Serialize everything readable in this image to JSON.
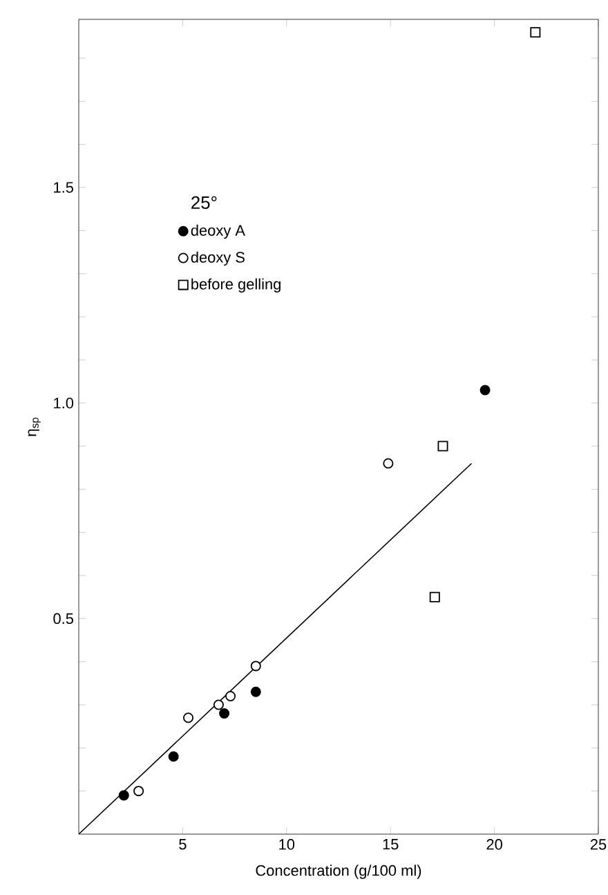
{
  "chart_data": {
    "type": "scatter",
    "xlabel": "Concentration (g/100 ml)",
    "ylabel": "η$_{sp}$",
    "legend_title": "25°",
    "xlim": [
      0,
      25
    ],
    "ylim": [
      0,
      1.89
    ],
    "xticks": [
      5,
      10,
      15,
      20,
      25
    ],
    "yticks": [
      {
        "value": 0.1,
        "label": null
      },
      {
        "value": 0.2,
        "label": null
      },
      {
        "value": 0.3,
        "label": null
      },
      {
        "value": 0.4,
        "label": null
      },
      {
        "value": 0.5,
        "label": "0.5"
      },
      {
        "value": 0.6,
        "label": null
      },
      {
        "value": 0.7,
        "label": null
      },
      {
        "value": 0.8,
        "label": null
      },
      {
        "value": 0.9,
        "label": null
      },
      {
        "value": 1.0,
        "label": "1.0"
      },
      {
        "value": 1.1,
        "label": null
      },
      {
        "value": 1.2,
        "label": null
      },
      {
        "value": 1.3,
        "label": null
      },
      {
        "value": 1.4,
        "label": null
      },
      {
        "value": 1.5,
        "label": "1.5"
      },
      {
        "value": 1.6,
        "label": null
      },
      {
        "value": 1.7,
        "label": null
      },
      {
        "value": 1.8,
        "label": null
      }
    ],
    "legend": "top left",
    "grid": false,
    "series": [
      {
        "name": "deoxy A",
        "marker": "circle",
        "color": "#000000",
        "x": [
          2.17,
          4.56,
          7.0,
          8.52,
          19.55
        ],
        "values": [
          0.09,
          0.18,
          0.28,
          0.33,
          1.03
        ]
      },
      {
        "name": "deoxy S",
        "marker": "circle",
        "color": "#ffffff",
        "x": [
          2.88,
          5.27,
          6.73,
          7.3,
          8.52,
          14.89
        ],
        "values": [
          0.1,
          0.27,
          0.3,
          0.32,
          0.39,
          0.86
        ]
      },
      {
        "name": "before gelling",
        "marker": "square",
        "color": "#ffffff",
        "x": [
          17.13,
          17.52,
          21.97
        ],
        "values": [
          0.55,
          0.9,
          1.86
        ]
      },
      {
        "type": "line",
        "line_style": "solid",
        "color": "#000000",
        "x": [
          0,
          18.9
        ],
        "values": [
          0,
          0.86
        ]
      }
    ]
  }
}
